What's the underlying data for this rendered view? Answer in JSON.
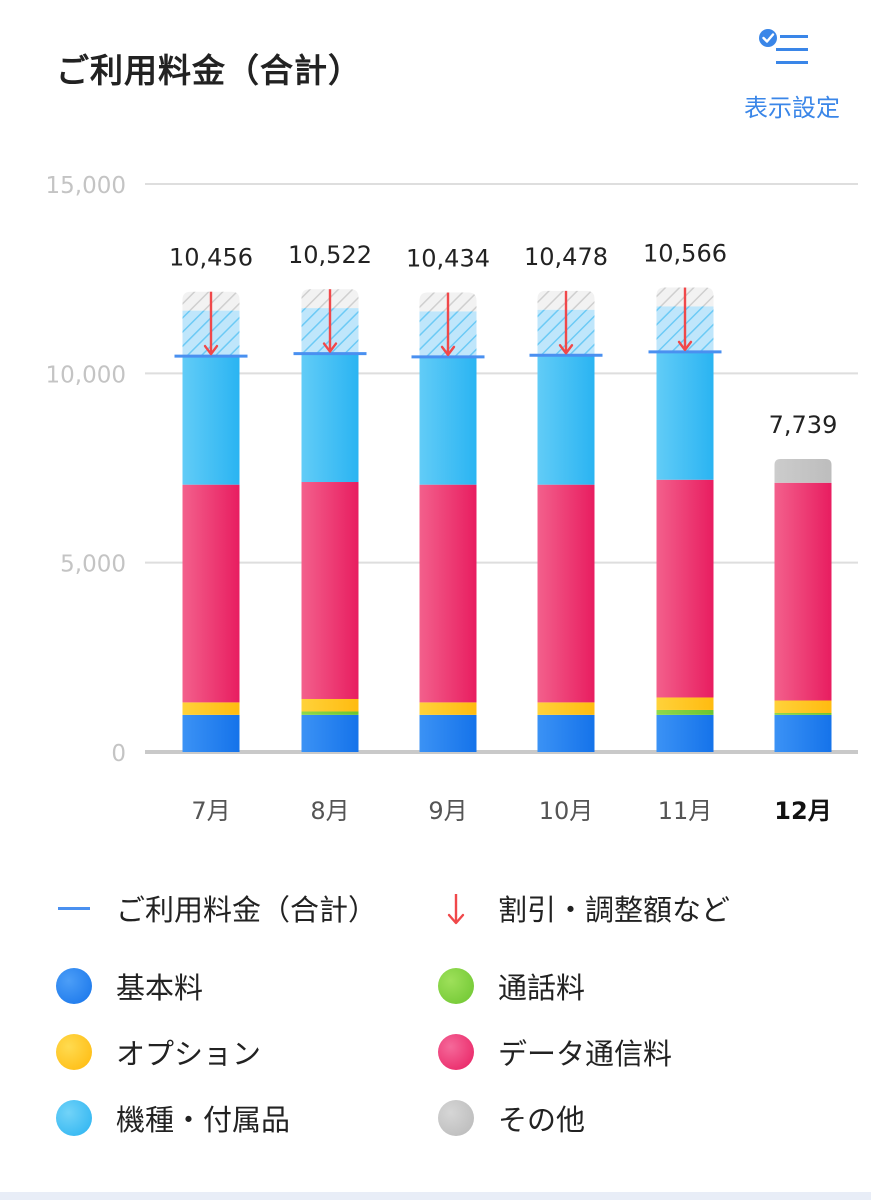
{
  "header": {
    "title": "ご利用料金（合計）",
    "settings_label": "表示設定",
    "settings_icon": "list-settings-icon"
  },
  "colors": {
    "basic": "#1f7ff0",
    "call": "#7ccf3a",
    "option": "#ffc21a",
    "device": "#3cbef5",
    "data": "#ee2a6b",
    "other": "#c4c4c4",
    "total_line": "#4a90f0",
    "discount_arrow": "#f0484a",
    "discount_fill": "#9cd8f7",
    "discount_hatch_gray": "#dcdcdc"
  },
  "chart_data": {
    "type": "bar",
    "stacked": true,
    "categories": [
      "7月",
      "8月",
      "9月",
      "10月",
      "11月",
      "12月"
    ],
    "current_category": "12月",
    "ylim": [
      0,
      15000
    ],
    "yticks": [
      "0",
      "5,000",
      "10,000",
      "15,000"
    ],
    "ytick_values": [
      0,
      5000,
      10000,
      15000
    ],
    "grid": true,
    "totals": [
      10456,
      10522,
      10434,
      10478,
      10566,
      7739
    ],
    "total_labels": [
      "10,456",
      "10,522",
      "10,434",
      "10,478",
      "10,566",
      "7,739"
    ],
    "series": [
      {
        "name": "基本料",
        "color": "#1f7ff0",
        "values": [
          980,
          980,
          980,
          980,
          980,
          980
        ]
      },
      {
        "name": "通話料",
        "color": "#7ccf3a",
        "values": [
          0,
          90,
          0,
          0,
          130,
          50
        ]
      },
      {
        "name": "オプション",
        "color": "#ffc21a",
        "values": [
          330,
          330,
          330,
          330,
          330,
          330
        ]
      },
      {
        "name": "データ通信料",
        "color": "#ee2a6b",
        "values": [
          5750,
          5730,
          5750,
          5750,
          5750,
          5750
        ]
      },
      {
        "name": "機種・付属品",
        "color": "#3cbef5",
        "values": [
          3396,
          3392,
          3374,
          3418,
          3376,
          0
        ]
      },
      {
        "name": "その他",
        "color": "#c4c4c4",
        "values": [
          0,
          0,
          0,
          0,
          0,
          629
        ]
      }
    ],
    "discount": {
      "name": "割引・調整額など",
      "device_discount": [
        1200,
        1200,
        1200,
        1200,
        1200,
        0
      ],
      "other_discount": [
        500,
        500,
        500,
        500,
        500,
        0
      ]
    }
  },
  "legend": {
    "items": [
      {
        "label": "ご利用料金（合計）",
        "kind": "line",
        "color": "#4a90f0"
      },
      {
        "label": "割引・調整額など",
        "kind": "arrow",
        "color": "#f0484a"
      },
      {
        "label": "基本料",
        "kind": "dot",
        "color": "#1f7ff0"
      },
      {
        "label": "通話料",
        "kind": "dot",
        "color": "#7ccf3a"
      },
      {
        "label": "オプション",
        "kind": "dot",
        "color": "#ffc21a"
      },
      {
        "label": "データ通信料",
        "kind": "dot",
        "color": "#ee2a6b"
      },
      {
        "label": "機種・付属品",
        "kind": "dot",
        "color": "#3cbef5"
      },
      {
        "label": "その他",
        "kind": "dot",
        "color": "#c4c4c4"
      }
    ]
  }
}
